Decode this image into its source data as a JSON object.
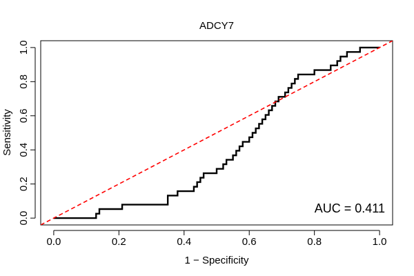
{
  "chart_data": {
    "type": "line",
    "title": "ADCY7",
    "x_label": "1 − Specificity",
    "y_label": "Sensitivity",
    "annotation": "AUC = 0.411",
    "xlim": [
      -0.04,
      1.04
    ],
    "ylim": [
      -0.04,
      1.04
    ],
    "xticks": [
      {
        "value": 0,
        "label": "0.0"
      },
      0.2,
      0.4,
      0.6,
      0.8,
      {
        "value": 1,
        "label": "1.0"
      }
    ],
    "yticks": [
      {
        "value": 0,
        "label": "0.0"
      },
      0.2,
      0.4,
      0.6,
      0.8,
      {
        "value": 1,
        "label": "1.0"
      }
    ],
    "series": [
      {
        "color": "#000000",
        "linestyle": "solid",
        "x": [
          0,
          0.13,
          0.13,
          0.14,
          0.14,
          0.21,
          0.21,
          0.35,
          0.35,
          0.38,
          0.38,
          0.43,
          0.43,
          0.44,
          0.44,
          0.45,
          0.45,
          0.46,
          0.46,
          0.5,
          0.5,
          0.52,
          0.52,
          0.53,
          0.53,
          0.55,
          0.55,
          0.56,
          0.56,
          0.57,
          0.57,
          0.58,
          0.58,
          0.6,
          0.6,
          0.61,
          0.61,
          0.62,
          0.62,
          0.63,
          0.63,
          0.64,
          0.64,
          0.65,
          0.65,
          0.66,
          0.66,
          0.67,
          0.67,
          0.68,
          0.68,
          0.69,
          0.69,
          0.71,
          0.71,
          0.72,
          0.72,
          0.73,
          0.73,
          0.74,
          0.74,
          0.75,
          0.75,
          0.8,
          0.8,
          0.85,
          0.85,
          0.87,
          0.87,
          0.88,
          0.88,
          0.9,
          0.9,
          0.94,
          0.94,
          1
        ],
        "values": [
          0,
          0,
          0.026,
          0.026,
          0.053,
          0.053,
          0.079,
          0.079,
          0.132,
          0.132,
          0.158,
          0.158,
          0.184,
          0.184,
          0.211,
          0.211,
          0.237,
          0.237,
          0.263,
          0.263,
          0.289,
          0.289,
          0.316,
          0.316,
          0.342,
          0.342,
          0.368,
          0.368,
          0.395,
          0.395,
          0.421,
          0.421,
          0.447,
          0.447,
          0.474,
          0.474,
          0.5,
          0.5,
          0.526,
          0.526,
          0.553,
          0.553,
          0.579,
          0.579,
          0.605,
          0.605,
          0.632,
          0.632,
          0.658,
          0.658,
          0.684,
          0.684,
          0.711,
          0.711,
          0.737,
          0.737,
          0.763,
          0.763,
          0.789,
          0.789,
          0.816,
          0.816,
          0.842,
          0.842,
          0.868,
          0.868,
          0.895,
          0.895,
          0.921,
          0.921,
          0.947,
          0.947,
          0.974,
          0.974,
          1,
          1
        ]
      },
      {
        "color": "#ff0000",
        "linestyle": "dashed",
        "x": [
          -0.04,
          1.04
        ],
        "values": [
          -0.04,
          1.04
        ]
      }
    ]
  }
}
